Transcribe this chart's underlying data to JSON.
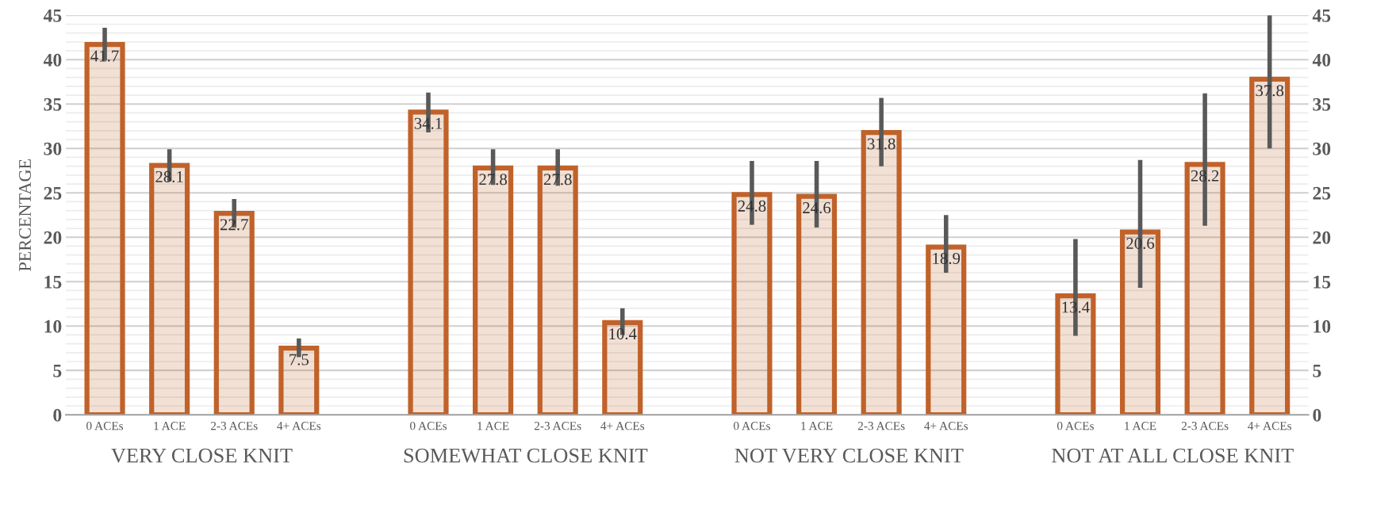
{
  "chart_data": {
    "type": "bar",
    "ylabel": "PERCENTAGE",
    "categories": [
      "0 ACEs",
      "1 ACE",
      "2-3 ACEs",
      "4+ ACEs",
      null,
      "0 ACEs",
      "1 ACE",
      "2-3 ACEs",
      "4+ ACEs",
      null,
      "0 ACEs",
      "1 ACE",
      "2-3 ACEs",
      "4+ ACEs",
      null,
      "0 ACEs",
      "1 ACE",
      "2-3 ACEs",
      "4+ ACEs"
    ],
    "series": [
      {
        "color": "#c0622a",
        "values": [
          41.7,
          28.1,
          22.7,
          7.5,
          null,
          34.1,
          27.8,
          27.8,
          10.4,
          null,
          24.8,
          24.6,
          31.8,
          18.9,
          null,
          13.4,
          20.6,
          28.2,
          37.8
        ],
        "errors": [
          [
            39.9,
            43.6
          ],
          [
            26.3,
            29.9
          ],
          [
            21.1,
            24.3
          ],
          [
            6.5,
            8.6
          ],
          null,
          [
            31.8,
            36.3
          ],
          [
            25.9,
            29.9
          ],
          [
            25.8,
            29.9
          ],
          [
            9.0,
            12.0
          ],
          null,
          [
            21.4,
            28.6
          ],
          [
            21.1,
            28.6
          ],
          [
            28.0,
            35.7
          ],
          [
            16.0,
            22.5
          ],
          null,
          [
            8.9,
            19.8
          ],
          [
            14.3,
            28.7
          ],
          [
            21.3,
            36.2
          ],
          [
            30.0,
            45
          ]
        ]
      }
    ],
    "annotations": [
      "VERY CLOSE KNIT",
      "SOMEWHAT CLOSE KNIT",
      "NOT VERY CLOSE KNIT",
      "NOT AT ALL CLOSE KNIT"
    ],
    "ylim": [
      0,
      45
    ],
    "yticks": [
      0,
      5,
      10,
      15,
      20,
      25,
      30,
      35,
      40,
      45
    ],
    "y2lim": [
      0,
      45
    ],
    "y2ticks": [
      0,
      5,
      10,
      15,
      20,
      25,
      30,
      35,
      40,
      45
    ],
    "grid": "y",
    "data_labels": true
  }
}
